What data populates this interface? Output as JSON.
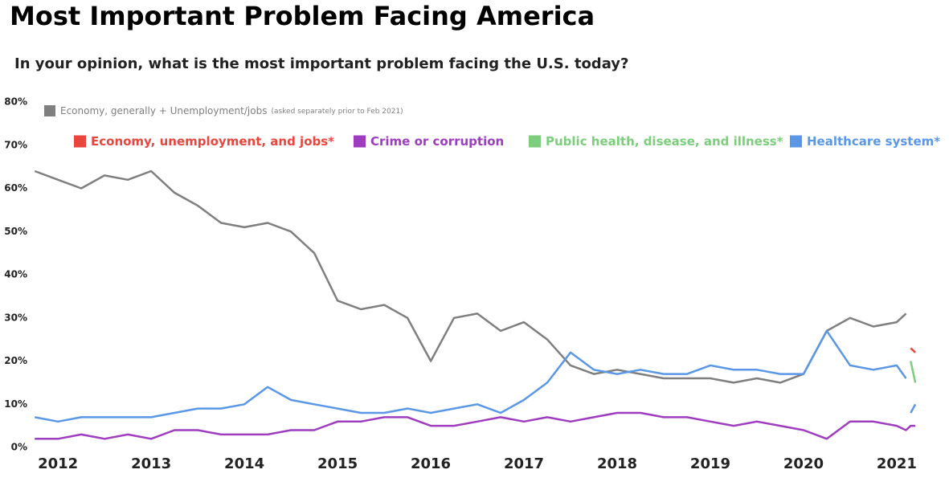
{
  "chart_data": {
    "type": "line",
    "title": "Most Important Problem Facing America",
    "subtitle": "In your opinion, what is the most important problem facing the U.S. today?",
    "xlim": [
      2011.74,
      2021.38
    ],
    "xticks": [
      2012,
      2013,
      2014,
      2015,
      2016,
      2017,
      2018,
      2019,
      2020,
      2021
    ],
    "ylim": [
      0,
      80
    ],
    "yticks": [
      {
        "value": 0,
        "label": "0%"
      },
      {
        "value": 10,
        "label": "10%"
      },
      {
        "value": 20,
        "label": "20%"
      },
      {
        "value": 30,
        "label": "30%"
      },
      {
        "value": 40,
        "label": "40%"
      },
      {
        "value": 50,
        "label": "50%"
      },
      {
        "value": 60,
        "label": "60%"
      },
      {
        "value": 70,
        "label": "70%"
      },
      {
        "value": 80,
        "label": "80%"
      }
    ],
    "series": [
      {
        "name": "Economy, generally + Unemployment/jobs",
        "note": "(asked separately prior to Feb 2021)",
        "color": "#7f7f7f",
        "x": [
          2011.75,
          2012,
          2012.25,
          2012.5,
          2012.75,
          2013,
          2013.25,
          2013.5,
          2013.75,
          2014,
          2014.25,
          2014.5,
          2014.75,
          2015,
          2015.25,
          2015.5,
          2015.75,
          2016,
          2016.25,
          2016.5,
          2016.75,
          2017,
          2017.25,
          2017.5,
          2017.75,
          2018,
          2018.25,
          2018.5,
          2018.75,
          2019,
          2019.25,
          2019.5,
          2019.75,
          2020,
          2020.25,
          2020.5,
          2020.75,
          2021,
          2021.1
        ],
        "values": [
          64,
          62,
          60,
          63,
          62,
          64,
          59,
          56,
          52,
          51,
          52,
          50,
          45,
          34,
          32,
          33,
          30,
          20,
          30,
          31,
          27,
          29,
          25,
          19,
          17,
          18,
          17,
          16,
          16,
          16,
          15,
          16,
          15,
          17,
          27,
          30,
          28,
          29,
          31
        ]
      },
      {
        "name": "Economy, unemployment, and jobs*",
        "color": "#e8453c",
        "x": [
          2021.15,
          2021.2
        ],
        "values": [
          23,
          22
        ]
      },
      {
        "name": "Crime or corruption",
        "color": "#9e3dbf",
        "x": [
          2011.75,
          2012,
          2012.25,
          2012.5,
          2012.75,
          2013,
          2013.25,
          2013.5,
          2013.75,
          2014,
          2014.25,
          2014.5,
          2014.75,
          2015,
          2015.25,
          2015.5,
          2015.75,
          2016,
          2016.25,
          2016.5,
          2016.75,
          2017,
          2017.25,
          2017.5,
          2017.75,
          2018,
          2018.25,
          2018.5,
          2018.75,
          2019,
          2019.25,
          2019.5,
          2019.75,
          2020,
          2020.25,
          2020.5,
          2020.75,
          2021,
          2021.1,
          2021.15,
          2021.2
        ],
        "values": [
          2,
          2,
          3,
          2,
          3,
          2,
          4,
          4,
          3,
          3,
          3,
          4,
          4,
          6,
          6,
          7,
          7,
          5,
          5,
          6,
          7,
          6,
          7,
          6,
          7,
          8,
          8,
          7,
          7,
          6,
          5,
          6,
          5,
          4,
          2,
          6,
          6,
          5,
          4,
          5,
          5
        ]
      },
      {
        "name": "Public health, disease, and illness*",
        "color": "#7ccd7c",
        "x": [
          2021.15,
          2021.2
        ],
        "values": [
          20,
          15
        ]
      },
      {
        "name": "Healthcare system*",
        "color": "#5a97e6",
        "x": [
          2011.75,
          2012,
          2012.25,
          2012.5,
          2012.75,
          2013,
          2013.25,
          2013.5,
          2013.75,
          2014,
          2014.25,
          2014.5,
          2014.75,
          2015,
          2015.25,
          2015.5,
          2015.75,
          2016,
          2016.25,
          2016.5,
          2016.75,
          2017,
          2017.25,
          2017.5,
          2017.75,
          2018,
          2018.25,
          2018.5,
          2018.75,
          2019,
          2019.25,
          2019.5,
          2019.75,
          2020,
          2020.25,
          2020.5,
          2020.75,
          2021,
          2021.1,
          2021.12,
          2021.15,
          2021.2
        ],
        "values": [
          7,
          6,
          7,
          7,
          7,
          7,
          8,
          9,
          9,
          10,
          14,
          11,
          10,
          9,
          8,
          8,
          9,
          8,
          9,
          10,
          8,
          11,
          15,
          22,
          18,
          17,
          18,
          17,
          17,
          19,
          18,
          18,
          17,
          17,
          27,
          19,
          18,
          19,
          16,
          null,
          8,
          10
        ]
      }
    ]
  }
}
